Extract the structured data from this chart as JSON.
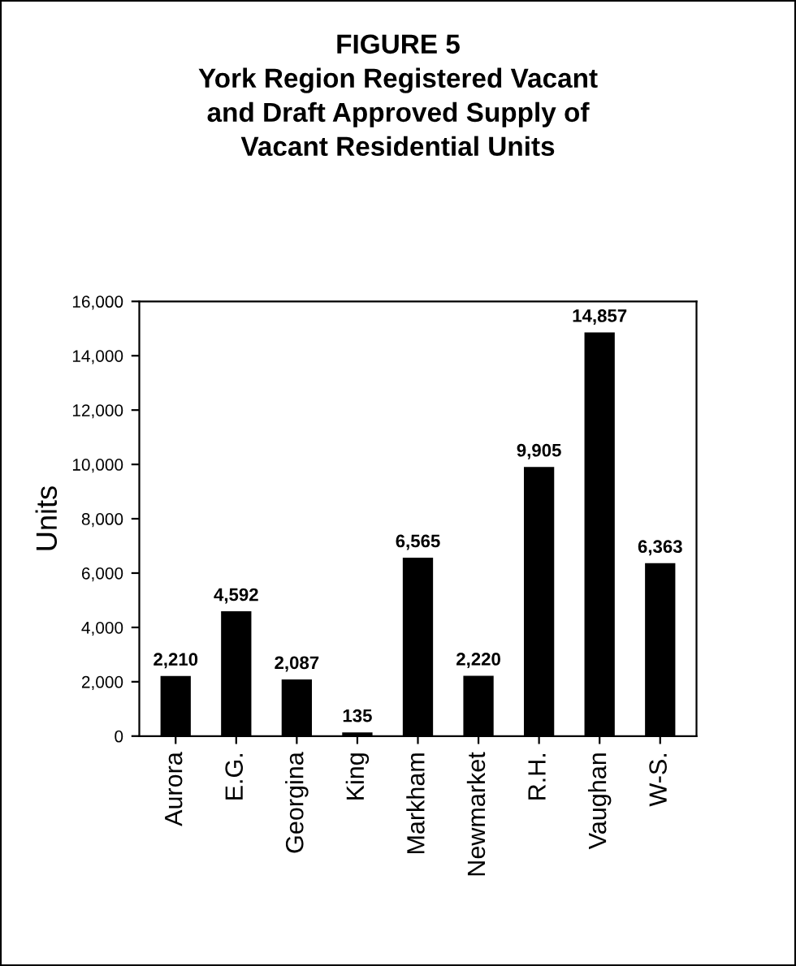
{
  "chart_data": {
    "type": "bar",
    "title": "FIGURE 5\nYork Region Registered Vacant\nand Draft Approved Supply of\nVacant Residential Units",
    "ylabel": "Units",
    "categories": [
      "Aurora",
      "E.G.",
      "Georgina",
      "King",
      "Markham",
      "Newmarket",
      "R.H.",
      "Vaughan",
      "W-S."
    ],
    "values": [
      2210,
      4592,
      2087,
      135,
      6565,
      2220,
      9905,
      14857,
      6363
    ],
    "value_labels": [
      "2,210",
      "4,592",
      "2,087",
      "135",
      "6,565",
      "2,220",
      "9,905",
      "14,857",
      "6,363"
    ],
    "color": "#000000",
    "ylim": [
      0,
      16000
    ],
    "yticks": [
      {
        "value": 0,
        "label": "0"
      },
      {
        "value": 2000,
        "label": "2,000"
      },
      {
        "value": 4000,
        "label": "4,000"
      },
      {
        "value": 6000,
        "label": "6,000"
      },
      {
        "value": 8000,
        "label": "8,000"
      },
      {
        "value": 10000,
        "label": "10,000"
      },
      {
        "value": 12000,
        "label": "12,000"
      },
      {
        "value": 14000,
        "label": "14,000"
      },
      {
        "value": 16000,
        "label": "16,000"
      }
    ],
    "grid": false,
    "legend": false
  }
}
